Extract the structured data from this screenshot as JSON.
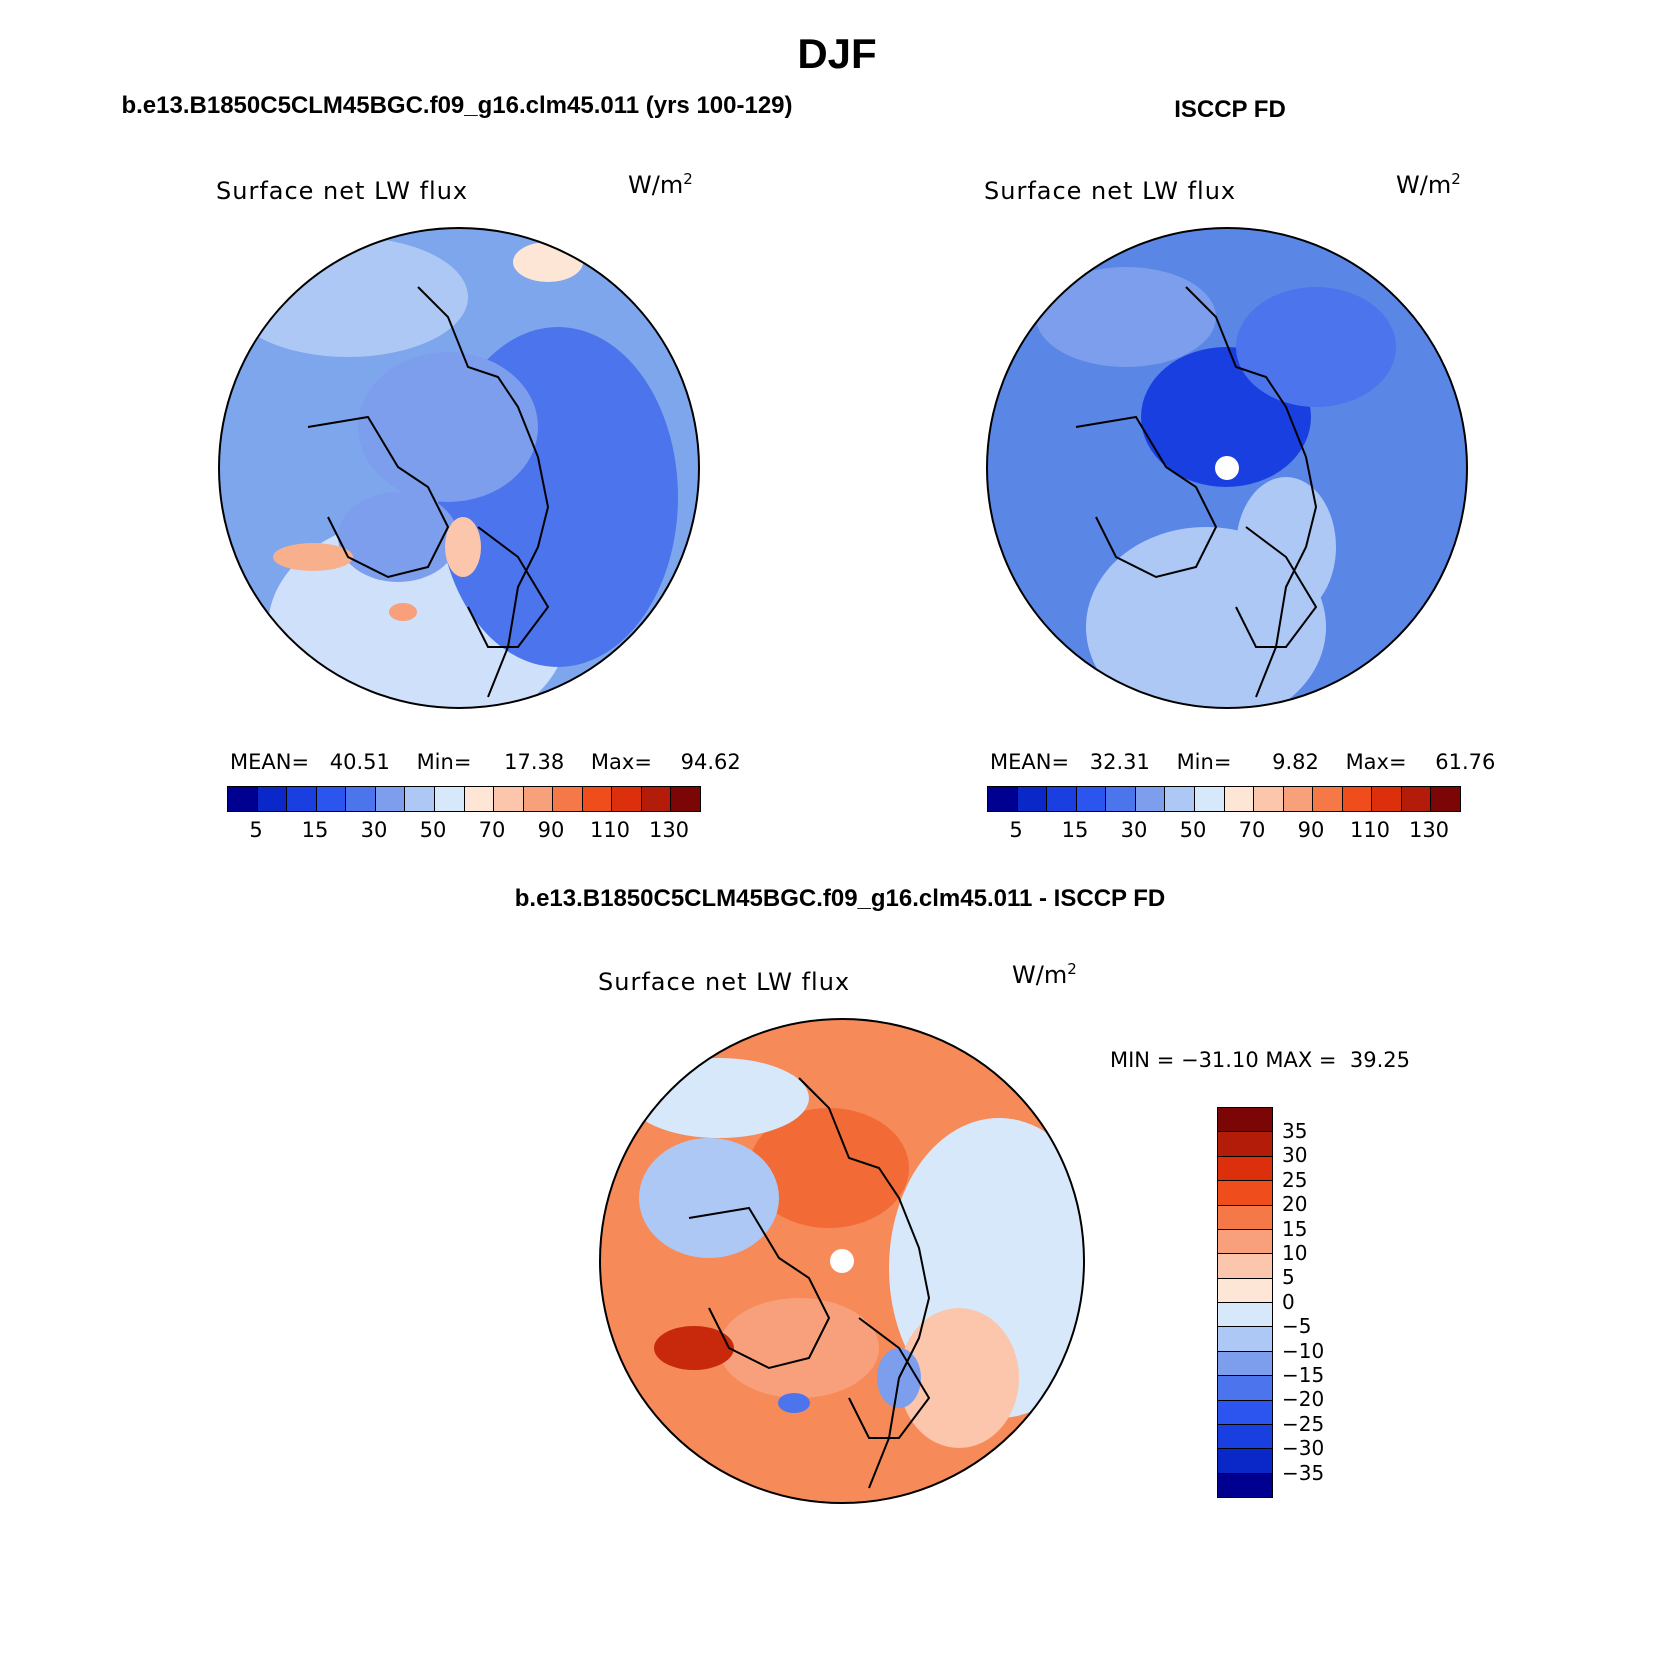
{
  "page_title": "DJF",
  "panels": [
    {
      "header": "b.e13.B1850C5CLM45BGC.f09_g16.clm45.011 (yrs 100-129)",
      "var_label": "Surface net LW flux",
      "units_base": "W/m",
      "units_exp": "2",
      "stats": {
        "mean_label": "MEAN=",
        "mean": "40.51",
        "min_label": "Min=",
        "min": "17.38",
        "max_label": "Max=",
        "max": "94.62"
      },
      "base_color": "#7ea6ec"
    },
    {
      "header": "ISCCP FD",
      "var_label": "Surface net LW flux",
      "units_base": "W/m",
      "units_exp": "2",
      "stats": {
        "mean_label": "MEAN=",
        "mean": "32.31",
        "min_label": "Min=",
        "min": "9.82",
        "max_label": "Max=",
        "max": "61.76"
      },
      "base_color": "#5a86e6"
    }
  ],
  "colorbar_abs": {
    "colors": [
      "#000090",
      "#0a28c8",
      "#1a3fe0",
      "#2c55f0",
      "#4c74ec",
      "#7c9eec",
      "#aec8f5",
      "#d8e8fb",
      "#fde6d6",
      "#fbc6ac",
      "#f8a07c",
      "#f57848",
      "#ef4e1c",
      "#dc300c",
      "#b31c08",
      "#7a0606"
    ],
    "ticks": [
      "5",
      "15",
      "30",
      "50",
      "70",
      "90",
      "110",
      "130"
    ]
  },
  "diff_panel": {
    "header": "b.e13.B1850C5CLM45BGC.f09_g16.clm45.011 - ISCCP FD",
    "var_label": "Surface net LW flux",
    "units_base": "W/m",
    "units_exp": "2",
    "minmax": "MIN = −31.10 MAX =  39.25",
    "base_color": "#f68a58"
  },
  "colorbar_diff": {
    "colors": [
      "#7a0606",
      "#b31c08",
      "#dc300c",
      "#ef4e1c",
      "#f57848",
      "#f8a07c",
      "#fbc6ac",
      "#fde6d6",
      "#d8e8fb",
      "#aec8f5",
      "#7c9eec",
      "#4c74ec",
      "#2c55f0",
      "#1a3fe0",
      "#0a28c8",
      "#000090"
    ],
    "ticks": [
      "35",
      "30",
      "25",
      "20",
      "15",
      "10",
      "5",
      "0",
      "−5",
      "−10",
      "−15",
      "−20",
      "−25",
      "−30",
      "−35"
    ]
  }
}
